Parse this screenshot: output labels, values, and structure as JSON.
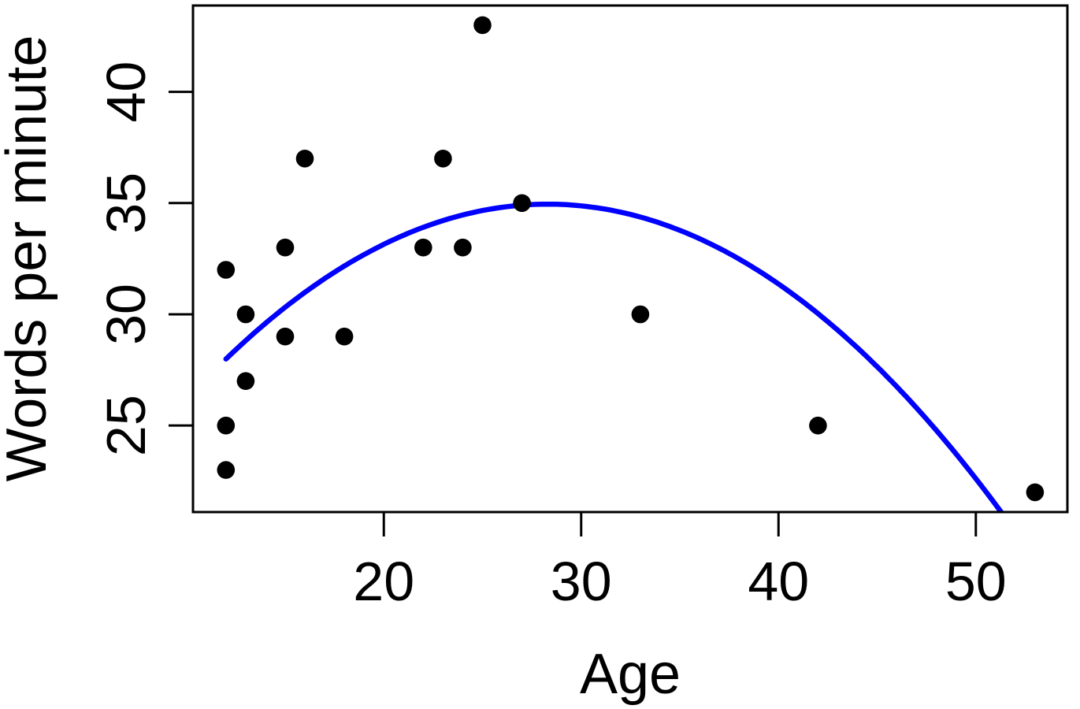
{
  "figure": {
    "background": "#ffffff"
  },
  "chart_data": {
    "type": "scatter",
    "title": "",
    "xlabel": "Age",
    "ylabel": "Words per minute",
    "x": [
      12,
      12,
      12,
      13,
      13,
      15,
      15,
      16,
      18,
      22,
      23,
      24,
      25,
      27,
      33,
      42,
      53
    ],
    "y": [
      32,
      25,
      23,
      30,
      27,
      33,
      29,
      37,
      29,
      33,
      37,
      33,
      43,
      35,
      30,
      25,
      22
    ],
    "x_ticks": [
      20,
      30,
      40,
      50
    ],
    "y_ticks": [
      25,
      30,
      35,
      40
    ],
    "xlim": [
      10.33,
      54.64
    ],
    "ylim": [
      21.11,
      43.88
    ],
    "grid": false,
    "legend": null,
    "point_color": "#000000",
    "axis_color": "#000000",
    "fit_curve": {
      "type": "quadratic",
      "vertex_form": {
        "a": -0.0262,
        "h": 28.3,
        "k": 34.95
      },
      "x_range": [
        12,
        53
      ],
      "color": "#0000ff"
    }
  }
}
